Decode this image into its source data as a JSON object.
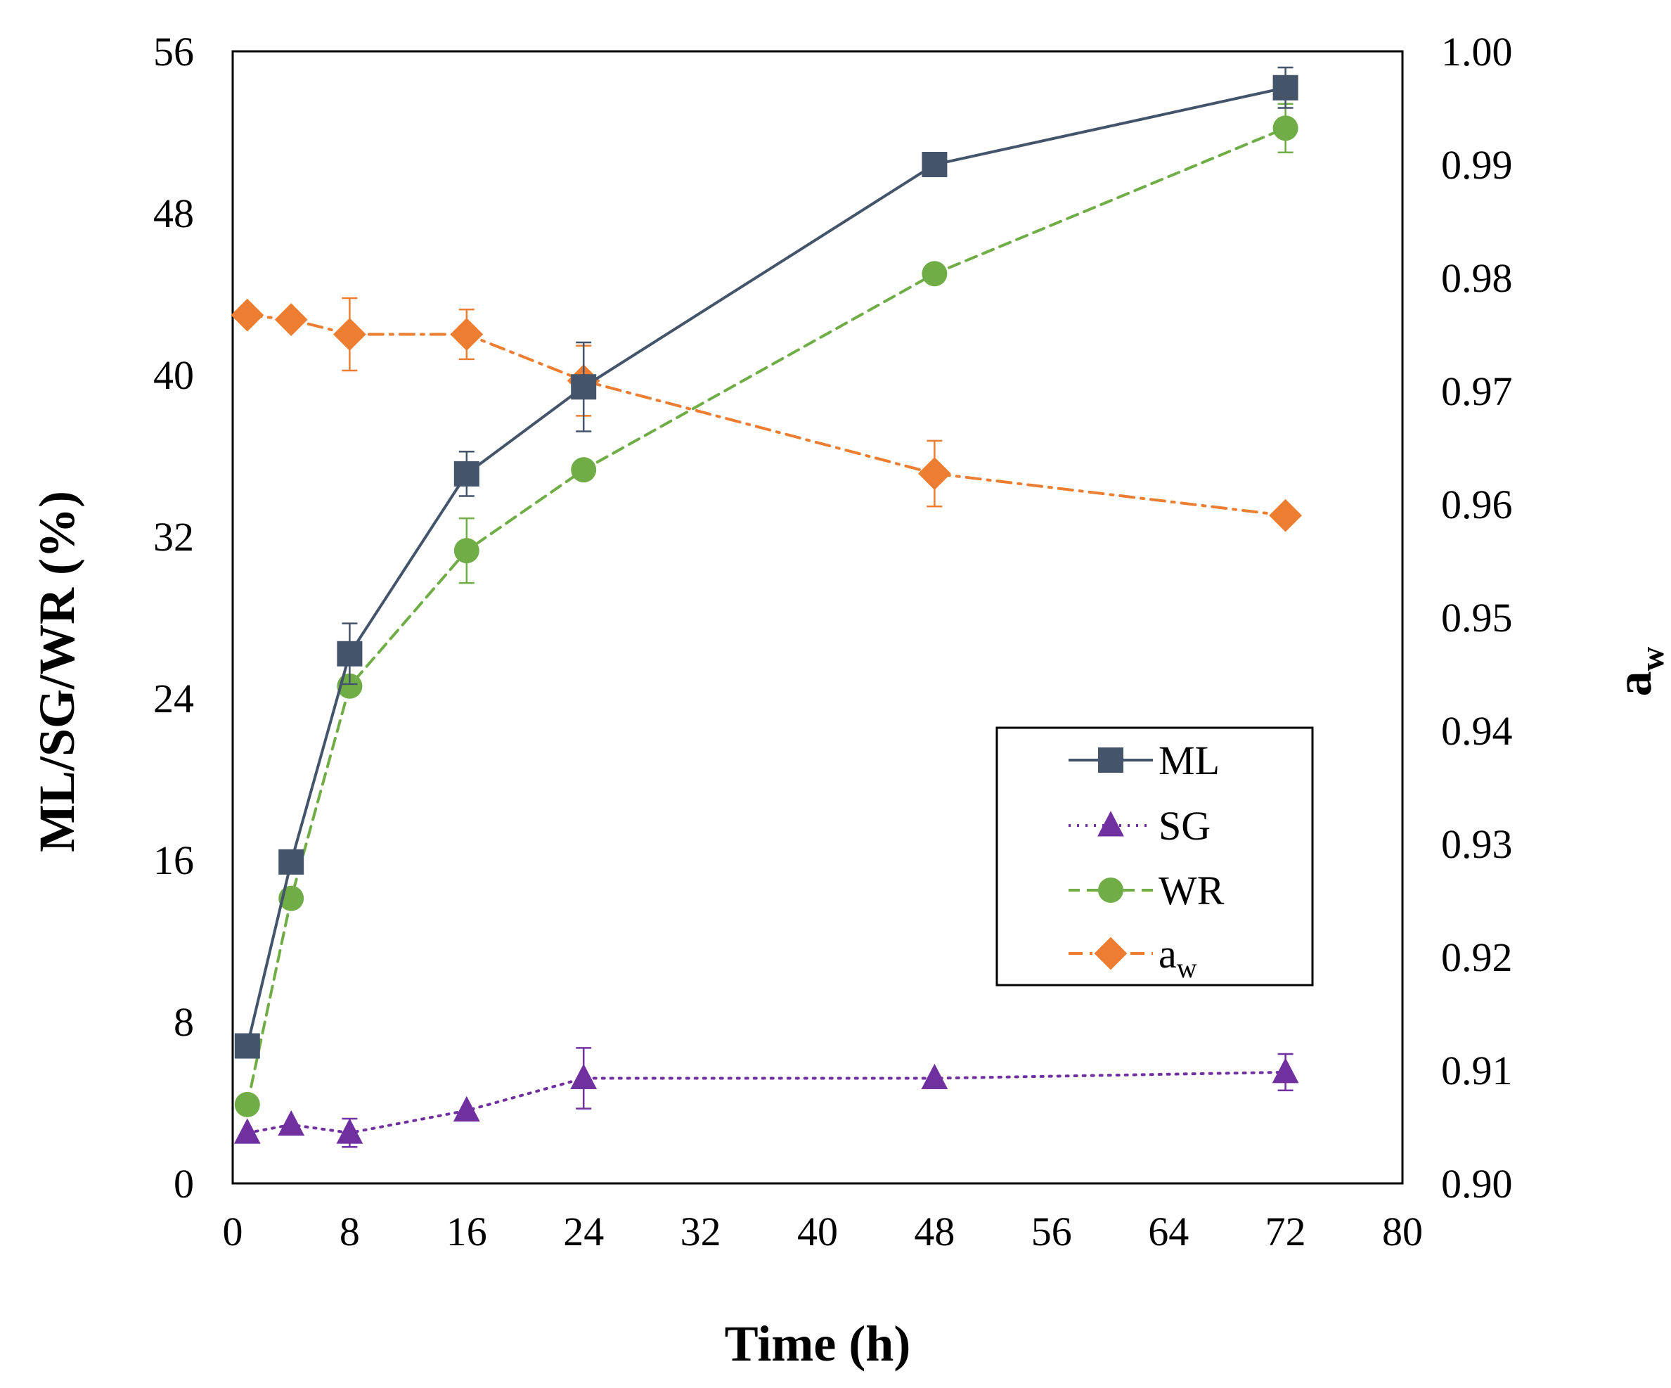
{
  "chart_data": {
    "type": "line",
    "xlabel": "Time (h)",
    "ylabel": "ML/SG/WR (%)",
    "y2label": {
      "main": "a",
      "sub": "w"
    },
    "xlim": [
      0,
      80
    ],
    "ylim": [
      0,
      56
    ],
    "y2lim": [
      0.9,
      1.0
    ],
    "x_ticks": [
      "0",
      "8",
      "16",
      "24",
      "32",
      "40",
      "48",
      "56",
      "64",
      "72",
      "80"
    ],
    "y_ticks": [
      "0",
      "8",
      "16",
      "24",
      "32",
      "40",
      "48",
      "56"
    ],
    "y2_ticks": [
      "0.90",
      "0.91",
      "0.92",
      "0.93",
      "0.94",
      "0.95",
      "0.96",
      "0.97",
      "0.98",
      "0.99",
      "1.00"
    ],
    "grid": false,
    "legend_position": "center-right",
    "series": [
      {
        "name": "ML",
        "axis": "left",
        "color": "#44546a",
        "marker": "square",
        "dash": "solid",
        "x": [
          1,
          4,
          8,
          16,
          24,
          48,
          72
        ],
        "y": [
          6.8,
          15.9,
          26.2,
          35.1,
          39.4,
          50.4,
          54.2
        ],
        "err": [
          0,
          0,
          1.5,
          1.1,
          2.2,
          0,
          1.0
        ]
      },
      {
        "name": "SG",
        "axis": "left",
        "color": "#7030a0",
        "marker": "triangle",
        "dash": "dotted",
        "x": [
          1,
          4,
          8,
          16,
          24,
          48,
          72
        ],
        "y": [
          2.5,
          2.9,
          2.5,
          3.6,
          5.2,
          5.2,
          5.5
        ],
        "err": [
          0,
          0,
          0.7,
          0,
          1.5,
          0,
          0.9
        ]
      },
      {
        "name": "WR",
        "axis": "left",
        "color": "#70ad47",
        "marker": "circle",
        "dash": "dashed",
        "x": [
          1,
          4,
          8,
          16,
          24,
          48,
          72
        ],
        "y": [
          3.9,
          14.1,
          24.6,
          31.3,
          35.3,
          45.0,
          52.2
        ],
        "err": [
          0,
          0,
          0,
          1.6,
          0,
          0,
          1.2
        ]
      },
      {
        "name": "a",
        "name_sub": "w",
        "axis": "right",
        "color": "#ed7d31",
        "marker": "diamond",
        "dash": "dashdot",
        "x": [
          1,
          4,
          8,
          16,
          24,
          48,
          72
        ],
        "y": [
          0.9767,
          0.9763,
          0.975,
          0.975,
          0.9709,
          0.9627,
          0.959
        ],
        "err": [
          0,
          0,
          0.0032,
          0.0022,
          0.0031,
          0.0029,
          0
        ]
      }
    ]
  }
}
